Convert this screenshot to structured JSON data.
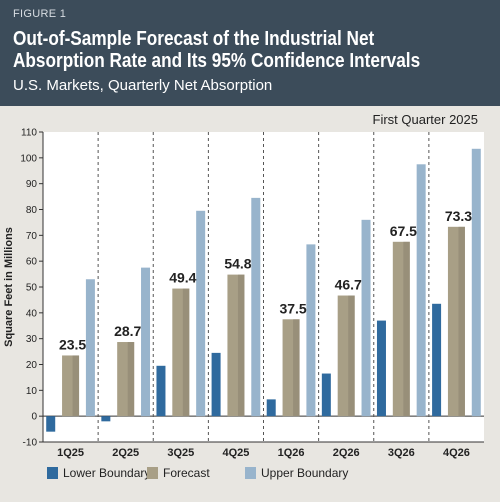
{
  "figure_label": "FIGURE 1",
  "title_line1": "Out-of-Sample Forecast of the Industrial Net",
  "title_line2": "Absorption Rate and Its 95% Confidence Intervals",
  "subtitle": "U.S. Markets, Quarterly Net Absorption",
  "colors": {
    "header_bg": "#3c4c5a",
    "panel_bg": "#e8e6e1",
    "lower": "#2f6a9e",
    "forecast": "#a89f86",
    "upper": "#98b4cc"
  },
  "chart_data": {
    "type": "bar",
    "annotation": "First Quarter 2025",
    "ylabel": "Square Feet in Millions",
    "ylim": [
      -10,
      110
    ],
    "yticks": [
      -10,
      0,
      10,
      20,
      30,
      40,
      50,
      60,
      70,
      80,
      90,
      100,
      110
    ],
    "categories": [
      "1Q25",
      "2Q25",
      "3Q25",
      "4Q25",
      "1Q26",
      "2Q26",
      "3Q26",
      "4Q26"
    ],
    "series": [
      {
        "name": "Lower Boundary",
        "values": [
          -6,
          -2,
          19.5,
          24.5,
          6.5,
          16.5,
          37,
          43.5
        ]
      },
      {
        "name": "Forecast",
        "values": [
          23.5,
          28.7,
          49.4,
          54.8,
          37.5,
          46.7,
          67.5,
          73.3
        ]
      },
      {
        "name": "Upper Boundary",
        "values": [
          53,
          57.5,
          79.5,
          84.5,
          66.5,
          76,
          97.5,
          103.5
        ]
      }
    ],
    "data_labels": [
      "23.5",
      "28.7",
      "49.4",
      "54.8",
      "37.5",
      "46.7",
      "67.5",
      "73.3"
    ],
    "legend_position": "bottom",
    "grid": false
  }
}
